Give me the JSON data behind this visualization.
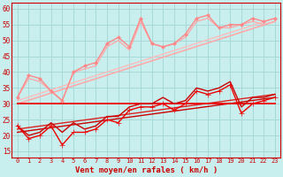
{
  "xlabel": "Vent moyen/en rafales ( km/h )",
  "bg_color": "#c8eeee",
  "grid_color": "#a8d8d8",
  "xlim": [
    -0.5,
    23.5
  ],
  "ylim": [
    13,
    62
  ],
  "yticks": [
    15,
    20,
    25,
    30,
    35,
    40,
    45,
    50,
    55,
    60
  ],
  "xticks": [
    0,
    1,
    2,
    3,
    4,
    5,
    6,
    7,
    8,
    9,
    10,
    11,
    12,
    13,
    14,
    15,
    16,
    17,
    18,
    19,
    20,
    21,
    22,
    23
  ],
  "series": [
    {
      "x": [
        0,
        23
      ],
      "y": [
        30,
        30
      ],
      "color": "#ee0000",
      "linewidth": 1.3,
      "marker": null,
      "zorder": 4
    },
    {
      "x": [
        0,
        1,
        2,
        3,
        4,
        5,
        6,
        7,
        8,
        9,
        10,
        11,
        12,
        13,
        14,
        15,
        16,
        17,
        18,
        19,
        20,
        21,
        22,
        23
      ],
      "y": [
        23,
        19,
        20,
        23,
        17,
        21,
        21,
        22,
        25,
        24,
        28,
        29,
        29,
        30,
        28,
        30,
        34,
        33,
        34,
        36,
        27,
        30,
        31,
        32
      ],
      "color": "#ee0000",
      "linewidth": 1.0,
      "marker": "+",
      "markersize": 4,
      "zorder": 5
    },
    {
      "x": [
        0,
        1,
        2,
        3,
        4,
        5,
        6,
        7,
        8,
        9,
        10,
        11,
        12,
        13,
        14,
        15,
        16,
        17,
        18,
        19,
        20,
        21,
        22,
        23
      ],
      "y": [
        23,
        20,
        21,
        24,
        21,
        24,
        22,
        23,
        26,
        26,
        29,
        30,
        30,
        32,
        30,
        31,
        35,
        34,
        35,
        37,
        29,
        32,
        32,
        33
      ],
      "color": "#cc0000",
      "linewidth": 1.0,
      "marker": null,
      "zorder": 4
    },
    {
      "x": [
        0,
        23
      ],
      "y": [
        21,
        32
      ],
      "color": "#cc0000",
      "linewidth": 1.0,
      "marker": null,
      "zorder": 3
    },
    {
      "x": [
        0,
        23
      ],
      "y": [
        22,
        33
      ],
      "color": "#dd2222",
      "linewidth": 1.0,
      "marker": null,
      "zorder": 3
    },
    {
      "x": [
        0,
        1,
        2,
        3,
        4,
        5,
        6,
        7,
        8,
        9,
        10,
        11,
        12,
        13,
        14,
        15,
        16,
        17,
        18,
        19,
        20,
        21,
        22,
        23
      ],
      "y": [
        32,
        39,
        38,
        34,
        31,
        40,
        42,
        43,
        49,
        51,
        48,
        57,
        49,
        48,
        49,
        52,
        57,
        58,
        54,
        55,
        55,
        57,
        56,
        57
      ],
      "color": "#ff8888",
      "linewidth": 1.0,
      "marker": "D",
      "markersize": 2,
      "zorder": 5
    },
    {
      "x": [
        0,
        1,
        2,
        3,
        4,
        5,
        6,
        7,
        8,
        9,
        10,
        11,
        12,
        13,
        14,
        15,
        16,
        17,
        18,
        19,
        20,
        21,
        22,
        23
      ],
      "y": [
        32,
        38,
        37,
        34,
        31,
        40,
        41,
        42,
        48,
        50,
        47,
        56,
        49,
        48,
        49,
        51,
        56,
        57,
        54,
        54,
        55,
        56,
        55,
        56
      ],
      "color": "#ffaaaa",
      "linewidth": 1.0,
      "marker": null,
      "zorder": 4
    },
    {
      "x": [
        0,
        23
      ],
      "y": [
        30,
        56
      ],
      "color": "#ffaaaa",
      "linewidth": 1.2,
      "marker": null,
      "zorder": 3
    },
    {
      "x": [
        0,
        23
      ],
      "y": [
        31,
        57
      ],
      "color": "#ffbbbb",
      "linewidth": 1.0,
      "marker": null,
      "zorder": 3
    }
  ]
}
